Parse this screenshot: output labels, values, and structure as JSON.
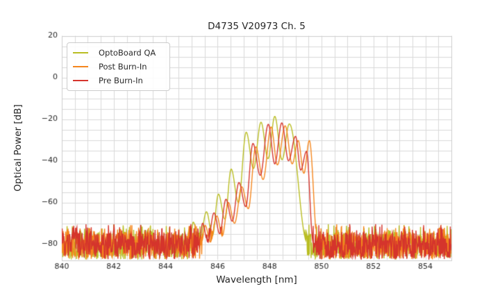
{
  "chart_data": {
    "type": "line",
    "title": "D4735 V20973 Ch. 5",
    "xlabel": "Wavelength [nm]",
    "ylabel": "Optical Power [dB]",
    "xlim": [
      840,
      855
    ],
    "ylim": [
      -87.5,
      20
    ],
    "xticks": {
      "values": [
        840,
        842,
        844,
        846,
        848,
        850,
        852,
        854
      ],
      "labels": [
        "840",
        "842",
        "844",
        "846",
        "848",
        "850",
        "852",
        "854"
      ]
    },
    "yticks": {
      "values": [
        20,
        0,
        -20,
        -40,
        -60,
        -80
      ],
      "labels": [
        "20",
        "0",
        "−20",
        "−40",
        "−60",
        "−80"
      ]
    },
    "grid": {
      "x_step_nm": 0.5,
      "y_step_db": 5,
      "color": "#d9d9d9",
      "frame_color": "#cccccc"
    },
    "legend": {
      "position": "upper left"
    },
    "noise_floor": {
      "min_db": -87.3,
      "typ_max_db": -74.2,
      "spike_max_db": -70.4,
      "spike_prob": 0.07,
      "sample_step_nm": 0.0135
    },
    "series": [
      {
        "name": "OptoBoard QA",
        "color": "#b9bd22",
        "seed": 11,
        "control_points_nm_db": [
          [
            844.95,
            -78
          ],
          [
            845.06,
            -69.5
          ],
          [
            845.3,
            -79
          ],
          [
            845.57,
            -64.5
          ],
          [
            845.8,
            -76
          ],
          [
            846.03,
            -56
          ],
          [
            846.28,
            -68
          ],
          [
            846.52,
            -44
          ],
          [
            846.8,
            -60
          ],
          [
            847.1,
            -26.3
          ],
          [
            847.38,
            -43.7
          ],
          [
            847.67,
            -21.5
          ],
          [
            847.94,
            -39
          ],
          [
            848.2,
            -18.7
          ],
          [
            848.48,
            -39.5
          ],
          [
            848.76,
            -22.3
          ],
          [
            849.45,
            -79
          ]
        ]
      },
      {
        "name": "Post Burn-In",
        "color": "#f5861d",
        "seed": 22,
        "control_points_nm_db": [
          [
            845.4,
            -78
          ],
          [
            845.52,
            -71
          ],
          [
            845.72,
            -79
          ],
          [
            845.97,
            -66.5
          ],
          [
            846.18,
            -76
          ],
          [
            846.41,
            -60
          ],
          [
            846.65,
            -70
          ],
          [
            846.93,
            -52.5
          ],
          [
            847.18,
            -63
          ],
          [
            847.47,
            -33.3
          ],
          [
            847.75,
            -49
          ],
          [
            848.06,
            -23.8
          ],
          [
            848.3,
            -42
          ],
          [
            848.6,
            -23.2
          ],
          [
            848.87,
            -41.5
          ],
          [
            849.1,
            -30.3
          ],
          [
            849.32,
            -46
          ],
          [
            849.53,
            -30.3
          ],
          [
            849.85,
            -79
          ]
        ]
      },
      {
        "name": "Pre Burn-In",
        "color": "#d5342c",
        "seed": 33,
        "control_points_nm_db": [
          [
            845.3,
            -78
          ],
          [
            845.42,
            -70
          ],
          [
            845.62,
            -79
          ],
          [
            845.86,
            -65
          ],
          [
            846.08,
            -75
          ],
          [
            846.32,
            -58.5
          ],
          [
            846.56,
            -69
          ],
          [
            846.82,
            -50.5
          ],
          [
            847.08,
            -62
          ],
          [
            847.36,
            -31.7
          ],
          [
            847.64,
            -47
          ],
          [
            847.95,
            -22.5
          ],
          [
            848.2,
            -41.5
          ],
          [
            848.47,
            -21.8
          ],
          [
            848.73,
            -40
          ],
          [
            849.0,
            -28.3
          ],
          [
            849.2,
            -44.5
          ],
          [
            849.42,
            -35.5
          ],
          [
            849.68,
            -79
          ]
        ]
      }
    ]
  }
}
